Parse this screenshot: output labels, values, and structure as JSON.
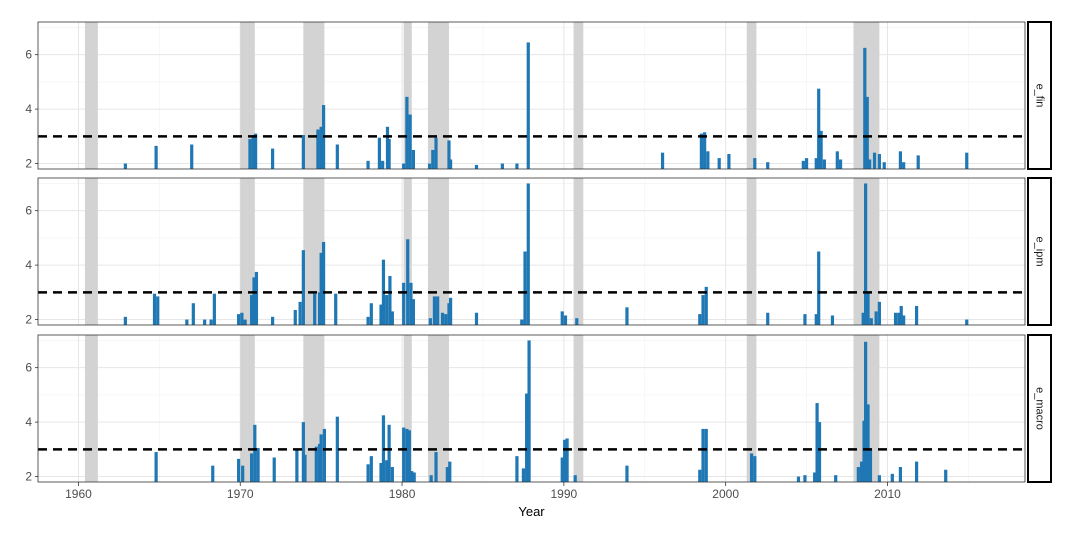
{
  "chart_data": {
    "type": "bar",
    "xlabel": "Year",
    "ylabel": "",
    "xlim": [
      1957.5,
      2018.5
    ],
    "ylim": [
      1.8,
      7.2
    ],
    "x_ticks": [
      1960,
      1970,
      1980,
      1990,
      2000,
      2010
    ],
    "y_ticks": [
      2,
      4,
      6
    ],
    "threshold": 3,
    "grid": true,
    "recession_shading": [
      [
        1960.4,
        1961.2
      ],
      [
        1970.0,
        1970.9
      ],
      [
        1973.9,
        1975.2
      ],
      [
        1980.1,
        1980.6
      ],
      [
        1981.6,
        1982.9
      ],
      [
        1990.6,
        1991.2
      ],
      [
        2001.3,
        2001.9
      ],
      [
        2007.9,
        2009.5
      ]
    ],
    "colors": {
      "bar": "#1f77b4",
      "recession": "#d3d3d3",
      "threshold": "#000000"
    },
    "panels": [
      {
        "label": "e_fin",
        "bars": [
          [
            1962.9,
            2.0
          ],
          [
            1964.8,
            2.65
          ],
          [
            1967.0,
            2.7
          ],
          [
            1970.6,
            2.9
          ],
          [
            1970.8,
            3.05
          ],
          [
            1970.95,
            3.1
          ],
          [
            1972.0,
            2.55
          ],
          [
            1973.9,
            3.05
          ],
          [
            1974.8,
            3.25
          ],
          [
            1975.0,
            3.35
          ],
          [
            1975.15,
            4.15
          ],
          [
            1976.0,
            2.7
          ],
          [
            1977.9,
            2.1
          ],
          [
            1978.6,
            2.95
          ],
          [
            1978.8,
            2.1
          ],
          [
            1979.1,
            3.35
          ],
          [
            1979.2,
            2.9
          ],
          [
            1980.1,
            2.0
          ],
          [
            1980.3,
            4.45
          ],
          [
            1980.5,
            3.8
          ],
          [
            1980.7,
            2.5
          ],
          [
            1981.7,
            2.0
          ],
          [
            1981.9,
            2.5
          ],
          [
            1982.1,
            2.95
          ],
          [
            1982.9,
            2.85
          ],
          [
            1983.0,
            2.15
          ],
          [
            1984.6,
            1.95
          ],
          [
            1986.2,
            2.0
          ],
          [
            1987.1,
            2.0
          ],
          [
            1987.8,
            6.45
          ],
          [
            1996.1,
            2.4
          ],
          [
            1998.5,
            3.1
          ],
          [
            1998.7,
            3.15
          ],
          [
            1998.9,
            2.45
          ],
          [
            1999.6,
            2.2
          ],
          [
            2000.2,
            2.35
          ],
          [
            2001.8,
            2.2
          ],
          [
            2002.6,
            2.05
          ],
          [
            2004.8,
            2.1
          ],
          [
            2005.0,
            2.2
          ],
          [
            2005.6,
            2.2
          ],
          [
            2005.75,
            4.75
          ],
          [
            2005.9,
            3.2
          ],
          [
            2006.1,
            2.15
          ],
          [
            2006.9,
            2.45
          ],
          [
            2007.1,
            2.15
          ],
          [
            2008.6,
            6.25
          ],
          [
            2008.75,
            4.45
          ],
          [
            2008.9,
            2.15
          ],
          [
            2009.2,
            2.4
          ],
          [
            2009.5,
            2.35
          ],
          [
            2009.8,
            2.05
          ],
          [
            2010.8,
            2.45
          ],
          [
            2011.0,
            2.05
          ],
          [
            2011.9,
            2.3
          ],
          [
            2014.9,
            2.4
          ]
        ]
      },
      {
        "label": "e_ipm",
        "bars": [
          [
            1962.9,
            2.1
          ],
          [
            1964.7,
            2.95
          ],
          [
            1964.9,
            2.85
          ],
          [
            1966.7,
            2.0
          ],
          [
            1967.1,
            2.6
          ],
          [
            1967.8,
            2.0
          ],
          [
            1968.2,
            2.0
          ],
          [
            1968.4,
            2.95
          ],
          [
            1969.9,
            2.2
          ],
          [
            1970.1,
            2.25
          ],
          [
            1970.3,
            2.0
          ],
          [
            1970.7,
            2.9
          ],
          [
            1970.85,
            3.55
          ],
          [
            1971.0,
            3.75
          ],
          [
            1972.0,
            2.1
          ],
          [
            1973.4,
            2.35
          ],
          [
            1973.7,
            2.65
          ],
          [
            1973.9,
            4.55
          ],
          [
            1974.6,
            2.95
          ],
          [
            1974.9,
            3.0
          ],
          [
            1975.0,
            4.45
          ],
          [
            1975.15,
            4.85
          ],
          [
            1975.9,
            2.95
          ],
          [
            1977.9,
            2.1
          ],
          [
            1978.1,
            2.6
          ],
          [
            1978.7,
            2.55
          ],
          [
            1978.85,
            4.2
          ],
          [
            1979.05,
            2.9
          ],
          [
            1979.25,
            3.6
          ],
          [
            1979.4,
            2.3
          ],
          [
            1980.1,
            3.35
          ],
          [
            1980.35,
            4.95
          ],
          [
            1980.55,
            3.35
          ],
          [
            1980.7,
            2.75
          ],
          [
            1981.75,
            2.05
          ],
          [
            1982.0,
            2.85
          ],
          [
            1982.2,
            2.85
          ],
          [
            1982.5,
            2.25
          ],
          [
            1982.7,
            2.2
          ],
          [
            1982.9,
            2.6
          ],
          [
            1983.0,
            2.8
          ],
          [
            1984.6,
            2.25
          ],
          [
            1987.4,
            2.0
          ],
          [
            1987.6,
            4.5
          ],
          [
            1987.8,
            7.0
          ],
          [
            1989.9,
            2.3
          ],
          [
            1990.1,
            2.15
          ],
          [
            1990.8,
            2.05
          ],
          [
            1993.9,
            2.45
          ],
          [
            1998.4,
            2.2
          ],
          [
            1998.6,
            2.9
          ],
          [
            1998.8,
            3.2
          ],
          [
            2002.6,
            2.25
          ],
          [
            2004.9,
            2.2
          ],
          [
            2005.6,
            2.2
          ],
          [
            2005.75,
            4.5
          ],
          [
            2006.6,
            2.15
          ],
          [
            2008.5,
            2.25
          ],
          [
            2008.65,
            7.0
          ],
          [
            2008.8,
            3.0
          ],
          [
            2009.0,
            2.05
          ],
          [
            2009.3,
            2.3
          ],
          [
            2009.5,
            2.65
          ],
          [
            2010.5,
            2.25
          ],
          [
            2010.7,
            2.25
          ],
          [
            2010.85,
            2.5
          ],
          [
            2011.0,
            2.15
          ],
          [
            2011.8,
            2.5
          ],
          [
            2014.9,
            2.0
          ]
        ]
      },
      {
        "label": "e_macro",
        "bars": [
          [
            1964.8,
            2.9
          ],
          [
            1968.3,
            2.4
          ],
          [
            1969.9,
            2.65
          ],
          [
            1970.15,
            2.4
          ],
          [
            1970.7,
            2.85
          ],
          [
            1970.9,
            3.9
          ],
          [
            1971.1,
            3.05
          ],
          [
            1972.1,
            2.7
          ],
          [
            1973.5,
            3.0
          ],
          [
            1973.9,
            4.0
          ],
          [
            1974.0,
            2.8
          ],
          [
            1974.7,
            3.1
          ],
          [
            1974.9,
            3.2
          ],
          [
            1975.0,
            3.55
          ],
          [
            1975.2,
            3.75
          ],
          [
            1976.0,
            4.2
          ],
          [
            1977.9,
            2.45
          ],
          [
            1978.1,
            2.75
          ],
          [
            1978.7,
            2.5
          ],
          [
            1978.85,
            4.25
          ],
          [
            1979.05,
            2.6
          ],
          [
            1979.2,
            3.9
          ],
          [
            1979.4,
            2.35
          ],
          [
            1980.1,
            3.8
          ],
          [
            1980.3,
            3.75
          ],
          [
            1980.45,
            3.7
          ],
          [
            1980.6,
            2.2
          ],
          [
            1980.75,
            2.15
          ],
          [
            1981.8,
            2.05
          ],
          [
            1982.1,
            2.9
          ],
          [
            1982.8,
            2.35
          ],
          [
            1982.95,
            2.55
          ],
          [
            1987.1,
            2.75
          ],
          [
            1987.5,
            2.3
          ],
          [
            1987.7,
            5.05
          ],
          [
            1987.85,
            7.0
          ],
          [
            1989.9,
            2.7
          ],
          [
            1990.05,
            3.35
          ],
          [
            1990.2,
            3.4
          ],
          [
            1990.7,
            2.05
          ],
          [
            1993.9,
            2.4
          ],
          [
            1998.4,
            2.25
          ],
          [
            1998.6,
            3.75
          ],
          [
            1998.8,
            3.75
          ],
          [
            2001.6,
            2.85
          ],
          [
            2001.8,
            2.75
          ],
          [
            2004.5,
            2.0
          ],
          [
            2004.9,
            2.05
          ],
          [
            2005.5,
            2.15
          ],
          [
            2005.65,
            4.7
          ],
          [
            2005.8,
            4.0
          ],
          [
            2006.8,
            2.05
          ],
          [
            2008.2,
            2.35
          ],
          [
            2008.4,
            2.55
          ],
          [
            2008.55,
            4.05
          ],
          [
            2008.65,
            6.95
          ],
          [
            2008.8,
            4.65
          ],
          [
            2008.95,
            3.0
          ],
          [
            2009.5,
            2.05
          ],
          [
            2010.3,
            2.1
          ],
          [
            2010.8,
            2.35
          ],
          [
            2011.8,
            2.55
          ],
          [
            2013.6,
            2.25
          ]
        ]
      }
    ]
  }
}
